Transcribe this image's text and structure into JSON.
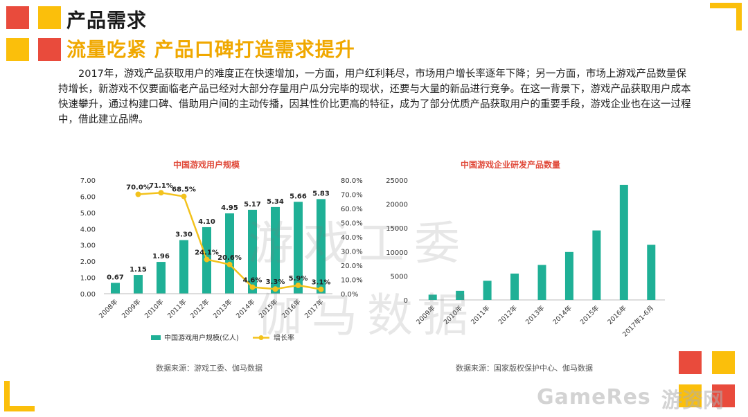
{
  "header": {
    "title": "产品需求",
    "subtitle": "流量吃紧 产品口碑打造需求提升"
  },
  "paragraph": "2017年，游戏产品获取用户的难度正在快速增加，一方面，用户红利耗尽，市场用户增长率逐年下降；另一方面，市场上游戏产品数量保持增长，新游戏不仅要面临老产品已经对大部分存量用户瓜分完毕的现状，还要与大量的新品进行竞争。在这一背景下，游戏产品获取用户成本快速攀升，通过构建口碑、借助用户间的主动传播，因其性价比更高的特征，成为了部分优质产品获取用户的重要手段，游戏企业也在这一过程中，借此建立品牌。",
  "colors": {
    "bar": "#1fb096",
    "line": "#f3c21c",
    "title_text": "#1a1a1a",
    "subtitle_text": "#f0a800",
    "chart_title": "#e04a3a",
    "deco_red": "#e94b3c",
    "deco_yellow": "#fbbf0b"
  },
  "chart_data": [
    {
      "type": "bar",
      "title": "中国游戏用户规模",
      "categories": [
        "2008年",
        "2009年",
        "2010年",
        "2011年",
        "2012年",
        "2013年",
        "2014年",
        "2015年",
        "2016年",
        "2017年"
      ],
      "series": [
        {
          "name": "中国游戏用户规模(亿人)",
          "type": "bar",
          "values": [
            0.67,
            1.15,
            1.96,
            3.3,
            4.1,
            4.95,
            5.17,
            5.34,
            5.66,
            5.83
          ],
          "labels": [
            "0.67",
            "1.15",
            "1.96",
            "3.30",
            "4.10",
            "4.95",
            "5.17",
            "5.34",
            "5.66",
            "5.83"
          ]
        },
        {
          "name": "增长率",
          "type": "line",
          "axis": "right",
          "values": [
            null,
            70.0,
            71.1,
            68.5,
            24.1,
            20.6,
            4.6,
            3.3,
            5.9,
            3.1
          ],
          "labels": [
            "",
            "70.0%",
            "71.1%",
            "68.5%",
            "24.1%",
            "20.6%",
            "4.6%",
            "3.3%",
            "5.9%",
            "3.1%"
          ]
        }
      ],
      "ylim": [
        0,
        7
      ],
      "y_ticks": [
        "0.00",
        "1.00",
        "2.00",
        "3.00",
        "4.00",
        "5.00",
        "6.00",
        "7.00"
      ],
      "y2lim": [
        0,
        80
      ],
      "y2_ticks": [
        "0.0%",
        "10.0%",
        "20.0%",
        "30.0%",
        "40.0%",
        "50.0%",
        "60.0%",
        "70.0%",
        "80.0%"
      ],
      "legend": "bottom",
      "source": "数据来源：游戏工委、伽马数据"
    },
    {
      "type": "bar",
      "title": "中国游戏企业研发产品数量",
      "categories": [
        "2009年",
        "2010年",
        "2011年",
        "2012年",
        "2013年",
        "2014年",
        "2015年",
        "2016年",
        "2017年1-6月"
      ],
      "values": [
        1100,
        1900,
        4000,
        5500,
        7300,
        10000,
        14500,
        24000,
        11500
      ],
      "ylim": [
        0,
        25000
      ],
      "y_ticks": [
        "0",
        "5000",
        "10000",
        "15000",
        "20000",
        "25000"
      ],
      "source": "数据来源：国家版权保护中心、伽马数据"
    }
  ],
  "watermarks": {
    "line1": "游戏工委",
    "line2": "伽马数据",
    "brand_latin": "GameRes",
    "brand_cn": "游资网"
  }
}
